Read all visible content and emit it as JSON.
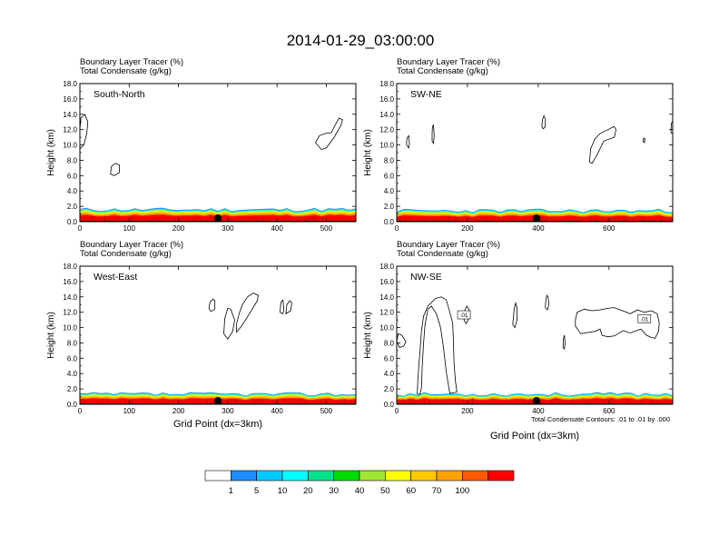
{
  "chart_data": {
    "type": "contour",
    "title": "2014-01-29_03:00:00",
    "fill_variable": "Boundary Layer Tracer",
    "fill_units": "(%)",
    "contour_variable": "Total Condensate",
    "contour_units": "(g/kg)",
    "ylabel": "Height (km)",
    "xlabel": "Grid Point (dx=3km)",
    "ylim": [
      0,
      18
    ],
    "yticks": [
      "0.0",
      "2.0",
      "4.0",
      "6.0",
      "8.0",
      "10.0",
      "12.0",
      "14.0",
      "16.0",
      "18.0"
    ],
    "contour_note": "Total Condensate Contours: .01 to .01 by .000",
    "contour_label": ".01",
    "panels": [
      {
        "name": "South-North",
        "xlim": [
          0,
          560
        ],
        "xticks": [
          "0",
          "100",
          "200",
          "300",
          "400",
          "500"
        ],
        "marker_x": 280,
        "show_xlabel": false,
        "show_note": false,
        "contour_labels": []
      },
      {
        "name": "SW-NE",
        "xlim": [
          0,
          780
        ],
        "xticks": [
          "0",
          "200",
          "400",
          "600"
        ],
        "marker_x": 395,
        "show_xlabel": false,
        "show_note": false,
        "contour_labels": []
      },
      {
        "name": "West-East",
        "xlim": [
          0,
          560
        ],
        "xticks": [
          "0",
          "100",
          "200",
          "300",
          "400",
          "500"
        ],
        "marker_x": 280,
        "show_xlabel": true,
        "show_note": false,
        "contour_labels": []
      },
      {
        "name": "NW-SE",
        "xlim": [
          0,
          780
        ],
        "xticks": [
          "0",
          "200",
          "400",
          "600"
        ],
        "marker_x": 395,
        "show_xlabel": true,
        "show_note": true,
        "contour_labels": [
          {
            "x": 190,
            "y": 11.6
          },
          {
            "x": 700,
            "y": 11.1
          }
        ]
      }
    ],
    "colorbar": {
      "levels": [
        "1",
        "5",
        "10",
        "20",
        "30",
        "40",
        "50",
        "60",
        "70",
        "100"
      ],
      "colors": [
        "#ffffff",
        "#1e8cff",
        "#00c8ff",
        "#00ffff",
        "#00e38c",
        "#00dc00",
        "#a0e632",
        "#ffff00",
        "#ffc800",
        "#ffa000",
        "#ff5a00",
        "#ff0000"
      ]
    }
  }
}
